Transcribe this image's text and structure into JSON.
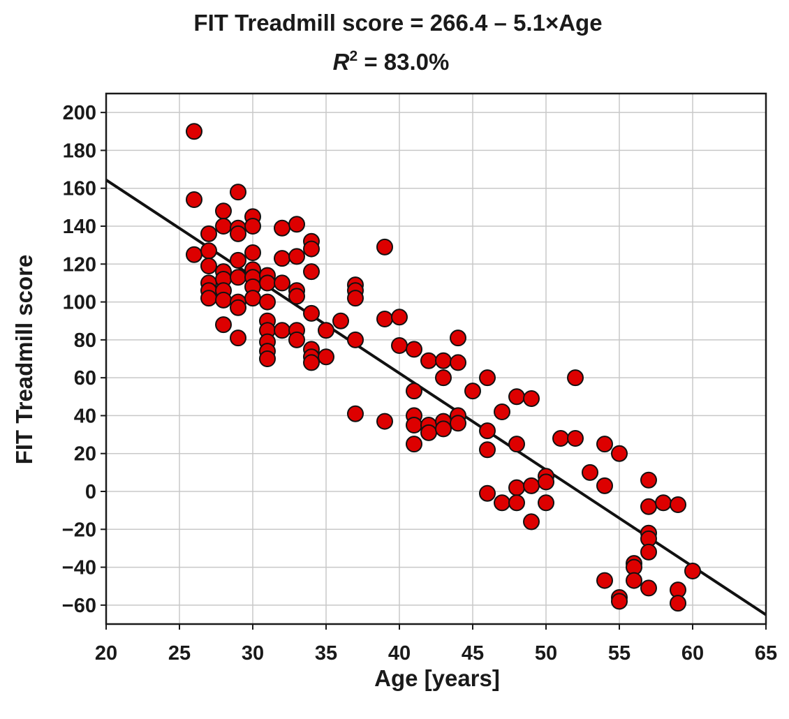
{
  "chart_data": {
    "type": "scatter",
    "title_lines": {
      "line1": "FIT Treadmill score = 266.4 – 5.1×Age",
      "r_symbol": "R",
      "r_superscript": "2",
      "r_value": " = 83.0%"
    },
    "xlabel": "Age [years]",
    "ylabel": "FIT Treadmill score",
    "xlim": [
      20,
      65
    ],
    "ylim": [
      -70,
      210
    ],
    "xticks": [
      20,
      25,
      30,
      35,
      40,
      45,
      50,
      55,
      60,
      65
    ],
    "yticks": [
      -60,
      -40,
      -20,
      0,
      20,
      40,
      60,
      80,
      100,
      120,
      140,
      160,
      180,
      200
    ],
    "ytick_labels": [
      "−60",
      "−40",
      "−20",
      "0",
      "20",
      "40",
      "60",
      "80",
      "100",
      "120",
      "140",
      "160",
      "180",
      "200"
    ],
    "grid": true,
    "point_color": "#dd0000",
    "point_edge_color": "#111111",
    "regression": {
      "intercept": 266.4,
      "slope": -5.1,
      "x_range": [
        20,
        65
      ]
    },
    "points": [
      [
        26,
        190
      ],
      [
        26,
        154
      ],
      [
        26,
        125
      ],
      [
        27,
        136
      ],
      [
        27,
        127
      ],
      [
        27,
        119
      ],
      [
        27,
        110
      ],
      [
        27,
        106
      ],
      [
        27,
        102
      ],
      [
        28,
        148
      ],
      [
        28,
        140
      ],
      [
        28,
        116
      ],
      [
        28,
        112
      ],
      [
        28,
        106
      ],
      [
        28,
        101
      ],
      [
        28,
        88
      ],
      [
        29,
        158
      ],
      [
        29,
        139
      ],
      [
        29,
        136
      ],
      [
        29,
        122
      ],
      [
        29,
        113
      ],
      [
        29,
        100
      ],
      [
        29,
        97
      ],
      [
        29,
        81
      ],
      [
        30,
        145
      ],
      [
        30,
        140
      ],
      [
        30,
        126
      ],
      [
        30,
        117
      ],
      [
        30,
        113
      ],
      [
        30,
        108
      ],
      [
        30,
        102
      ],
      [
        31,
        114
      ],
      [
        31,
        110
      ],
      [
        31,
        100
      ],
      [
        31,
        90
      ],
      [
        31,
        85
      ],
      [
        31,
        79
      ],
      [
        31,
        74
      ],
      [
        31,
        70
      ],
      [
        32,
        139
      ],
      [
        32,
        123
      ],
      [
        32,
        110
      ],
      [
        32,
        85
      ],
      [
        33,
        141
      ],
      [
        33,
        124
      ],
      [
        33,
        106
      ],
      [
        33,
        103
      ],
      [
        33,
        85
      ],
      [
        33,
        80
      ],
      [
        34,
        132
      ],
      [
        34,
        128
      ],
      [
        34,
        116
      ],
      [
        34,
        94
      ],
      [
        34,
        75
      ],
      [
        34,
        71
      ],
      [
        34,
        68
      ],
      [
        35,
        85
      ],
      [
        35,
        71
      ],
      [
        36,
        90
      ],
      [
        37,
        109
      ],
      [
        37,
        106
      ],
      [
        37,
        102
      ],
      [
        37,
        80
      ],
      [
        37,
        41
      ],
      [
        39,
        129
      ],
      [
        39,
        91
      ],
      [
        39,
        37
      ],
      [
        40,
        92
      ],
      [
        40,
        77
      ],
      [
        41,
        75
      ],
      [
        41,
        53
      ],
      [
        41,
        40
      ],
      [
        41,
        35
      ],
      [
        41,
        25
      ],
      [
        42,
        69
      ],
      [
        42,
        35
      ],
      [
        42,
        31
      ],
      [
        43,
        69
      ],
      [
        43,
        60
      ],
      [
        43,
        37
      ],
      [
        43,
        33
      ],
      [
        44,
        81
      ],
      [
        44,
        68
      ],
      [
        44,
        40
      ],
      [
        44,
        36
      ],
      [
        45,
        53
      ],
      [
        46,
        60
      ],
      [
        46,
        32
      ],
      [
        46,
        22
      ],
      [
        46,
        -1
      ],
      [
        47,
        42
      ],
      [
        47,
        -6
      ],
      [
        48,
        50
      ],
      [
        48,
        25
      ],
      [
        48,
        2
      ],
      [
        48,
        -6
      ],
      [
        49,
        49
      ],
      [
        49,
        3
      ],
      [
        49,
        -16
      ],
      [
        50,
        8
      ],
      [
        50,
        5
      ],
      [
        50,
        -6
      ],
      [
        51,
        28
      ],
      [
        52,
        60
      ],
      [
        52,
        28
      ],
      [
        53,
        10
      ],
      [
        54,
        25
      ],
      [
        54,
        3
      ],
      [
        54,
        -47
      ],
      [
        55,
        20
      ],
      [
        55,
        -56
      ],
      [
        55,
        -58
      ],
      [
        56,
        -38
      ],
      [
        56,
        -40
      ],
      [
        56,
        -47
      ],
      [
        57,
        6
      ],
      [
        57,
        -8
      ],
      [
        57,
        -22
      ],
      [
        57,
        -25
      ],
      [
        57,
        -32
      ],
      [
        57,
        -51
      ],
      [
        58,
        -6
      ],
      [
        59,
        -7
      ],
      [
        59,
        -52
      ],
      [
        59,
        -59
      ],
      [
        60,
        -42
      ]
    ]
  }
}
